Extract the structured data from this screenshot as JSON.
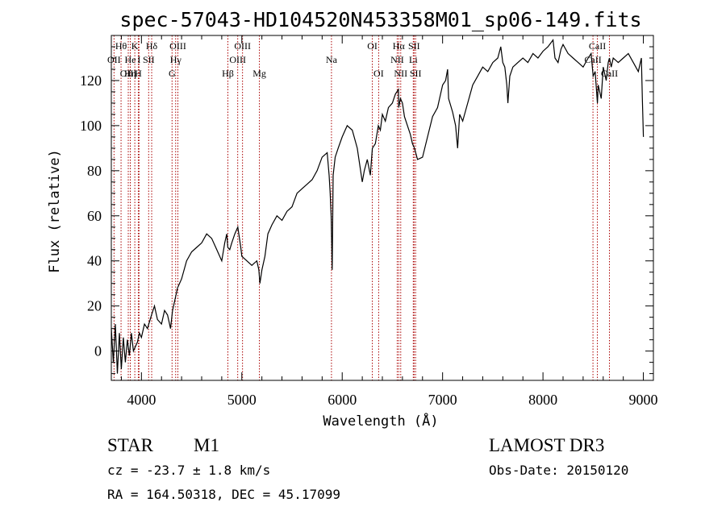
{
  "chart_data": {
    "type": "line",
    "title": "spec-57043-HD104520N453358M01_sp06-149.fits",
    "xlabel": "Wavelength (Å)",
    "ylabel": "Flux (relative)",
    "xlim": [
      3700,
      9100
    ],
    "ylim": [
      -13,
      140
    ],
    "xticks": [
      4000,
      5000,
      6000,
      7000,
      8000,
      9000
    ],
    "yticks": [
      0,
      20,
      40,
      60,
      80,
      100,
      120
    ],
    "series": [
      {
        "name": "flux",
        "x": [
          3700,
          3720,
          3740,
          3760,
          3780,
          3800,
          3820,
          3840,
          3860,
          3880,
          3900,
          3920,
          3940,
          3960,
          3980,
          4000,
          4030,
          4060,
          4100,
          4130,
          4160,
          4200,
          4230,
          4260,
          4290,
          4310,
          4330,
          4360,
          4400,
          4450,
          4500,
          4550,
          4600,
          4650,
          4700,
          4750,
          4800,
          4830,
          4850,
          4860,
          4880,
          4900,
          4930,
          4960,
          4990,
          5000,
          5050,
          5100,
          5150,
          5170,
          5180,
          5200,
          5230,
          5260,
          5300,
          5350,
          5400,
          5450,
          5500,
          5550,
          5600,
          5650,
          5700,
          5750,
          5800,
          5850,
          5870,
          5880,
          5890,
          5895,
          5900,
          5910,
          5930,
          5960,
          6000,
          6050,
          6100,
          6150,
          6200,
          6220,
          6250,
          6280,
          6300,
          6330,
          6360,
          6380,
          6400,
          6430,
          6460,
          6500,
          6530,
          6560,
          6563,
          6580,
          6600,
          6620,
          6650,
          6680,
          6700,
          6720,
          6750,
          6800,
          6850,
          6900,
          6950,
          7000,
          7030,
          7050,
          7060,
          7100,
          7130,
          7150,
          7170,
          7200,
          7250,
          7300,
          7350,
          7400,
          7450,
          7500,
          7550,
          7580,
          7600,
          7620,
          7640,
          7650,
          7670,
          7700,
          7750,
          7800,
          7850,
          7900,
          7950,
          8000,
          8050,
          8100,
          8120,
          8150,
          8180,
          8200,
          8250,
          8300,
          8350,
          8400,
          8450,
          8480,
          8500,
          8520,
          8542,
          8550,
          8580,
          8600,
          8630,
          8650,
          8662,
          8680,
          8700,
          8750,
          8800,
          8850,
          8900,
          8950,
          8980,
          8990,
          9000
        ],
        "y": [
          10,
          -5,
          12,
          -10,
          8,
          -8,
          6,
          -5,
          5,
          -2,
          8,
          0,
          2,
          4,
          8,
          6,
          12,
          10,
          16,
          20,
          14,
          12,
          18,
          16,
          10,
          18,
          22,
          28,
          32,
          40,
          44,
          46,
          48,
          52,
          50,
          45,
          40,
          48,
          52,
          46,
          45,
          48,
          52,
          55,
          46,
          42,
          40,
          38,
          40,
          36,
          30,
          36,
          42,
          52,
          56,
          60,
          58,
          62,
          64,
          70,
          72,
          74,
          76,
          80,
          86,
          88,
          78,
          70,
          60,
          48,
          36,
          78,
          86,
          90,
          95,
          100,
          98,
          90,
          75,
          80,
          85,
          78,
          90,
          92,
          100,
          98,
          105,
          102,
          108,
          110,
          114,
          116,
          108,
          112,
          110,
          104,
          100,
          96,
          92,
          90,
          85,
          86,
          95,
          104,
          108,
          118,
          120,
          125,
          112,
          106,
          100,
          90,
          105,
          102,
          110,
          118,
          122,
          126,
          124,
          128,
          130,
          135,
          128,
          126,
          118,
          110,
          122,
          126,
          128,
          130,
          128,
          132,
          130,
          133,
          135,
          138,
          130,
          128,
          134,
          136,
          132,
          130,
          128,
          126,
          130,
          132,
          122,
          124,
          110,
          118,
          112,
          126,
          120,
          128,
          130,
          126,
          130,
          128,
          130,
          132,
          128,
          124,
          130,
          112,
          95
        ]
      }
    ],
    "line_markers": [
      {
        "label": "Hθ",
        "x": 3797,
        "row": 0
      },
      {
        "label": "OII",
        "x": 3727,
        "row": 1
      },
      {
        "label": "OIII",
        "x": 3869,
        "row": 2
      },
      {
        "label": "He",
        "x": 3889,
        "row": 1
      },
      {
        "label": "K",
        "x": 3934,
        "row": 0
      },
      {
        "label": "Hη",
        "x": 3889,
        "row": 2
      },
      {
        "label": "H",
        "x": 3969,
        "row": 2
      },
      {
        "label": "I",
        "x": 3976,
        "row": 1
      },
      {
        "label": "Hδ",
        "x": 4102,
        "row": 0
      },
      {
        "label": "SII",
        "x": 4072,
        "row": 1
      },
      {
        "label": "OIII",
        "x": 4363,
        "row": 0
      },
      {
        "label": "Hγ",
        "x": 4341,
        "row": 1
      },
      {
        "label": "G",
        "x": 4305,
        "row": 2
      },
      {
        "label": "Hβ",
        "x": 4861,
        "row": 2
      },
      {
        "label": "OIII",
        "x": 5007,
        "row": 0
      },
      {
        "label": "OIII",
        "x": 4959,
        "row": 1
      },
      {
        "label": "Mg",
        "x": 5175,
        "row": 2
      },
      {
        "label": "Na",
        "x": 5893,
        "row": 1
      },
      {
        "label": "OI",
        "x": 6300,
        "row": 0
      },
      {
        "label": "OI",
        "x": 6363,
        "row": 2
      },
      {
        "label": "Hα",
        "x": 6563,
        "row": 0
      },
      {
        "label": "NII",
        "x": 6548,
        "row": 1
      },
      {
        "label": "NII",
        "x": 6583,
        "row": 2
      },
      {
        "label": "SII",
        "x": 6716,
        "row": 0
      },
      {
        "label": "Li",
        "x": 6708,
        "row": 1
      },
      {
        "label": "SII",
        "x": 6731,
        "row": 2
      },
      {
        "label": "CaII",
        "x": 8542,
        "row": 0
      },
      {
        "label": "CaII",
        "x": 8498,
        "row": 1
      },
      {
        "label": "CaII",
        "x": 8662,
        "row": 2
      }
    ],
    "marker_color": "#aa0000"
  },
  "info": {
    "object_class": "STAR",
    "subclass": "M1",
    "cz": "cz = -23.7 ± 1.8 km/s",
    "coords": "RA = 164.50318, DEC =  45.17099",
    "survey": "LAMOST DR3",
    "obs_date": "Obs-Date: 20150120"
  }
}
